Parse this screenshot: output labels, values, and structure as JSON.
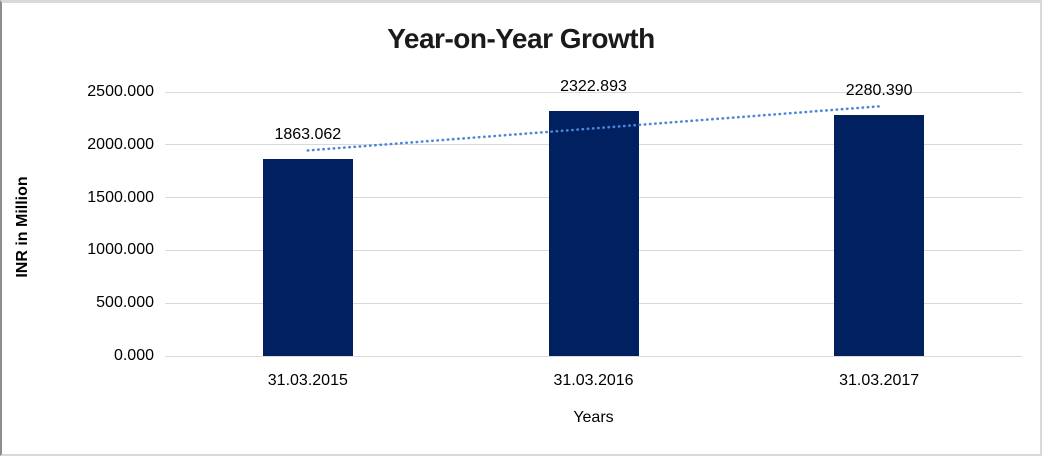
{
  "chart_data": {
    "type": "bar",
    "title": "Year-on-Year Growth",
    "xlabel": "Years",
    "ylabel": "INR in Million",
    "categories": [
      "31.03.2015",
      "31.03.2016",
      "31.03.2017"
    ],
    "values": [
      1863.062,
      2322.893,
      2280.39
    ],
    "data_labels": [
      "1863.062",
      "2322.893",
      "2280.390"
    ],
    "ylim": [
      0,
      2500
    ],
    "ytick_step": 500,
    "ytick_labels": [
      "0.000",
      "500.000",
      "1000.000",
      "1500.000",
      "2000.000",
      "2500.000"
    ],
    "grid": "horizontal-only",
    "legend": "none",
    "colors": {
      "bar": "#002060",
      "gridline": "#d9d9d9",
      "trendline": "#4a86d9",
      "title_text": "#1a1a1a",
      "axis_text": "#000000"
    },
    "trendline": {
      "type": "linear",
      "style": "dotted",
      "color": "#4a86d9",
      "fit_values": [
        1946.72,
        2155.45,
        2364.12
      ]
    }
  }
}
